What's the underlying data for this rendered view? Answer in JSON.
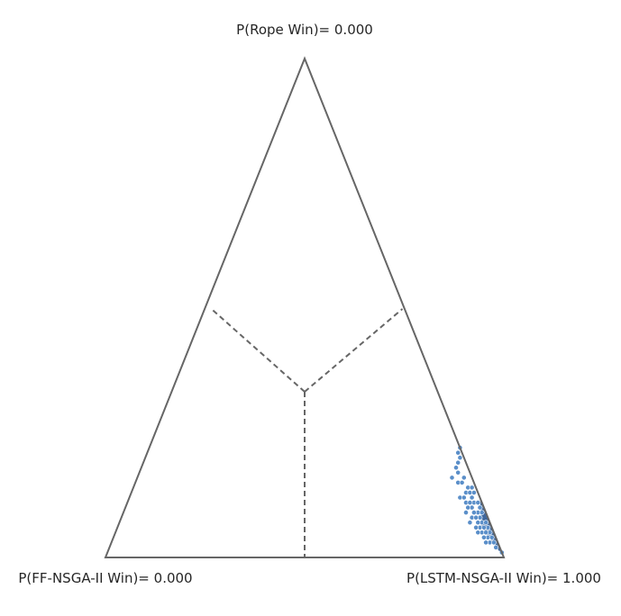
{
  "chart_data": {
    "type": "scatter",
    "subtype": "ternary-simplex",
    "vertex_labels": {
      "top": "P(Rope Win)= 0.000",
      "left": "P(FF-NSGA-II Win)= 0.000",
      "right": "P(LSTM-NSGA-II Win)= 1.000"
    },
    "axes": [
      "P(Rope Win)",
      "P(FF-NSGA-II Win)",
      "P(LSTM-NSGA-II Win)"
    ],
    "region_dividers": "dashed",
    "point_color": "#5b8fc9",
    "point_edge_color": "#ffffff",
    "dense_color": "#1f4e8c",
    "outline_color": "#666666",
    "points_description_note": null,
    "points": [
      [
        0.22,
        0.0,
        0.78
      ],
      [
        0.2,
        0.01,
        0.79
      ],
      [
        0.18,
        0.03,
        0.79
      ],
      [
        0.16,
        0.05,
        0.79
      ],
      [
        0.21,
        0.01,
        0.78
      ],
      [
        0.19,
        0.02,
        0.79
      ],
      [
        0.17,
        0.03,
        0.8
      ],
      [
        0.15,
        0.04,
        0.81
      ],
      [
        0.14,
        0.02,
        0.84
      ],
      [
        0.13,
        0.03,
        0.84
      ],
      [
        0.12,
        0.05,
        0.83
      ],
      [
        0.11,
        0.04,
        0.85
      ],
      [
        0.1,
        0.03,
        0.87
      ],
      [
        0.09,
        0.05,
        0.86
      ],
      [
        0.08,
        0.04,
        0.88
      ],
      [
        0.07,
        0.05,
        0.88
      ],
      [
        0.06,
        0.03,
        0.91
      ],
      [
        0.05,
        0.03,
        0.92
      ],
      [
        0.04,
        0.02,
        0.94
      ],
      [
        0.03,
        0.02,
        0.95
      ],
      [
        0.16,
        0.02,
        0.82
      ],
      [
        0.14,
        0.01,
        0.85
      ],
      [
        0.12,
        0.02,
        0.86
      ],
      [
        0.1,
        0.01,
        0.89
      ],
      [
        0.15,
        0.03,
        0.82
      ],
      [
        0.13,
        0.02,
        0.85
      ],
      [
        0.11,
        0.02,
        0.87
      ],
      [
        0.09,
        0.02,
        0.89
      ],
      [
        0.08,
        0.02,
        0.9
      ],
      [
        0.07,
        0.02,
        0.91
      ],
      [
        0.06,
        0.01,
        0.93
      ],
      [
        0.05,
        0.01,
        0.94
      ],
      [
        0.04,
        0.01,
        0.95
      ],
      [
        0.03,
        0.01,
        0.96
      ],
      [
        0.02,
        0.01,
        0.97
      ],
      [
        0.01,
        0.0,
        0.99
      ],
      [
        0.12,
        0.04,
        0.84
      ],
      [
        0.1,
        0.04,
        0.86
      ],
      [
        0.08,
        0.03,
        0.89
      ],
      [
        0.06,
        0.02,
        0.92
      ],
      [
        0.11,
        0.03,
        0.86
      ],
      [
        0.09,
        0.03,
        0.88
      ],
      [
        0.07,
        0.03,
        0.9
      ],
      [
        0.05,
        0.02,
        0.93
      ],
      [
        0.13,
        0.01,
        0.86
      ],
      [
        0.11,
        0.01,
        0.88
      ],
      [
        0.09,
        0.01,
        0.9
      ],
      [
        0.07,
        0.01,
        0.92
      ],
      [
        0.06,
        0.04,
        0.9
      ],
      [
        0.05,
        0.04,
        0.91
      ],
      [
        0.04,
        0.03,
        0.93
      ],
      [
        0.03,
        0.03,
        0.94
      ]
    ]
  }
}
